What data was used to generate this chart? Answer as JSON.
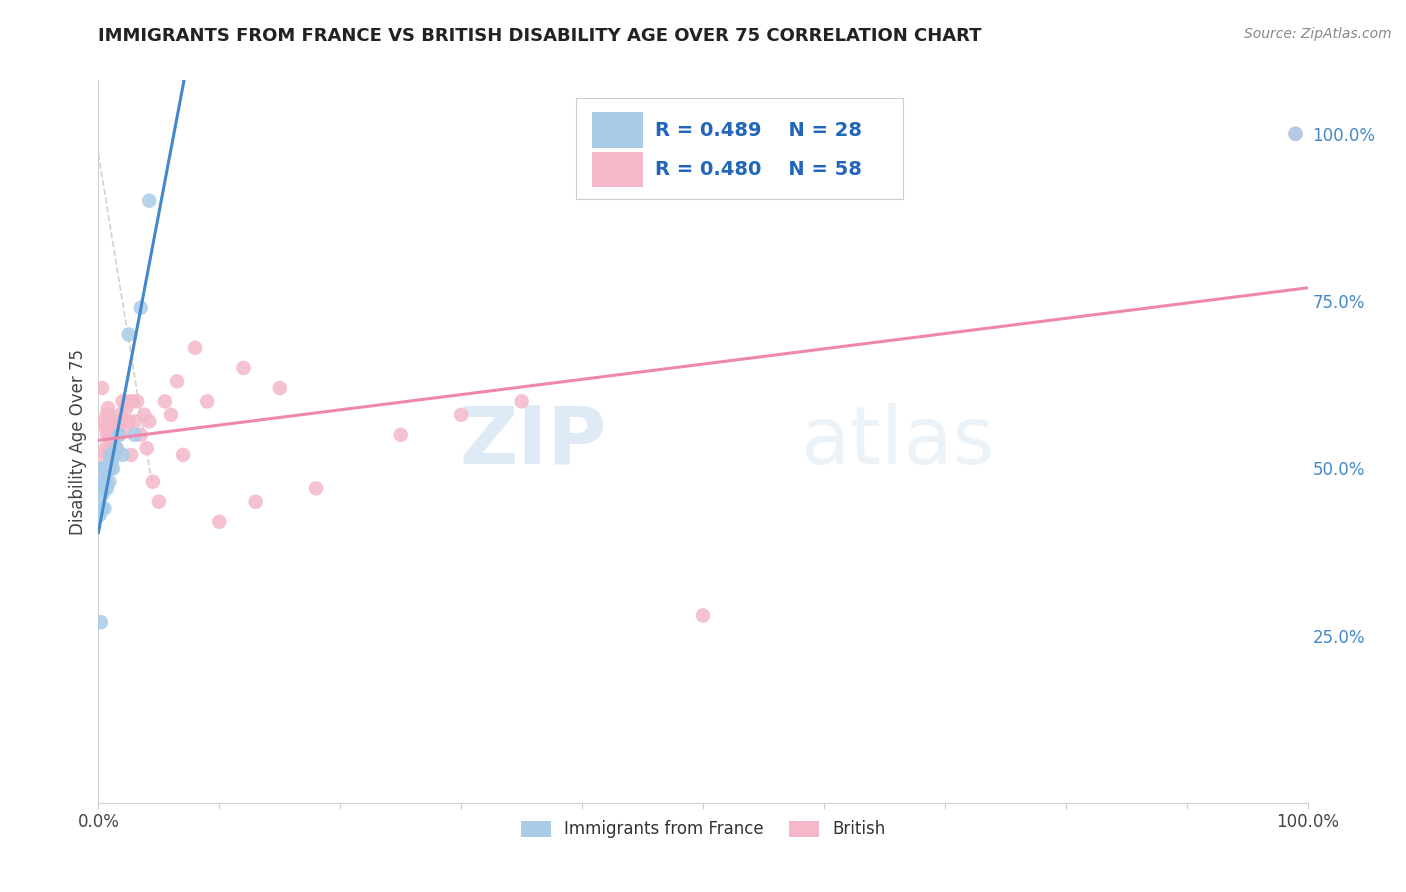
{
  "title": "IMMIGRANTS FROM FRANCE VS BRITISH DISABILITY AGE OVER 75 CORRELATION CHART",
  "source": "Source: ZipAtlas.com",
  "ylabel": "Disability Age Over 75",
  "right_ytick_labels": [
    "25.0%",
    "50.0%",
    "75.0%",
    "100.0%"
  ],
  "right_ytick_positions": [
    0.25,
    0.5,
    0.75,
    1.0
  ],
  "legend_blue_label": "Immigrants from France",
  "legend_pink_label": "British",
  "legend_blue_r": "R = 0.489",
  "legend_blue_n": "N = 28",
  "legend_pink_r": "R = 0.480",
  "legend_pink_n": "N = 58",
  "blue_color": "#a8cce8",
  "pink_color": "#f4b8c8",
  "blue_line_color": "#4488cc",
  "pink_line_color": "#ee88aa",
  "ref_line_color": "#cccccc",
  "watermark_zip": "ZIP",
  "watermark_atlas": "atlas",
  "blue_x": [
    0.001,
    0.002,
    0.003,
    0.003,
    0.004,
    0.004,
    0.005,
    0.005,
    0.006,
    0.006,
    0.007,
    0.007,
    0.008,
    0.009,
    0.009,
    0.01,
    0.01,
    0.011,
    0.012,
    0.013,
    0.015,
    0.017,
    0.02,
    0.025,
    0.03,
    0.035,
    0.042,
    0.99
  ],
  "blue_y": [
    0.43,
    0.27,
    0.44,
    0.46,
    0.48,
    0.5,
    0.44,
    0.47,
    0.48,
    0.5,
    0.47,
    0.5,
    0.5,
    0.48,
    0.5,
    0.5,
    0.52,
    0.51,
    0.5,
    0.52,
    0.53,
    0.55,
    0.52,
    0.7,
    0.55,
    0.74,
    0.9,
    1.0
  ],
  "pink_x": [
    0.002,
    0.003,
    0.004,
    0.005,
    0.005,
    0.005,
    0.006,
    0.006,
    0.007,
    0.007,
    0.008,
    0.008,
    0.009,
    0.009,
    0.01,
    0.01,
    0.011,
    0.011,
    0.012,
    0.012,
    0.013,
    0.014,
    0.015,
    0.016,
    0.017,
    0.018,
    0.02,
    0.02,
    0.022,
    0.023,
    0.025,
    0.025,
    0.027,
    0.028,
    0.03,
    0.032,
    0.035,
    0.038,
    0.04,
    0.042,
    0.045,
    0.05,
    0.055,
    0.06,
    0.065,
    0.07,
    0.08,
    0.09,
    0.1,
    0.12,
    0.13,
    0.15,
    0.18,
    0.25,
    0.3,
    0.35,
    0.5,
    0.99
  ],
  "pink_y": [
    0.5,
    0.62,
    0.57,
    0.48,
    0.5,
    0.52,
    0.53,
    0.56,
    0.55,
    0.58,
    0.55,
    0.59,
    0.52,
    0.55,
    0.5,
    0.53,
    0.55,
    0.57,
    0.54,
    0.57,
    0.55,
    0.57,
    0.53,
    0.56,
    0.55,
    0.58,
    0.57,
    0.6,
    0.56,
    0.59,
    0.57,
    0.6,
    0.52,
    0.6,
    0.57,
    0.6,
    0.55,
    0.58,
    0.53,
    0.57,
    0.48,
    0.45,
    0.6,
    0.58,
    0.63,
    0.52,
    0.68,
    0.6,
    0.42,
    0.65,
    0.45,
    0.62,
    0.47,
    0.55,
    0.58,
    0.6,
    0.28,
    1.0
  ],
  "xlim": [
    0.0,
    1.0
  ],
  "ylim": [
    0.0,
    1.08
  ],
  "figsize": [
    14.06,
    8.92
  ],
  "dpi": 100
}
